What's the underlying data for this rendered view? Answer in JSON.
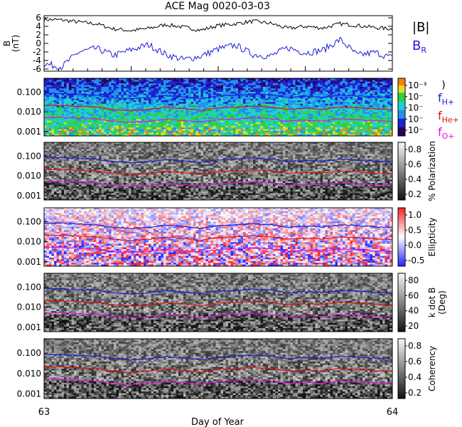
{
  "title": "ACE Mag 0020-03-03",
  "x_axis": {
    "label": "Day of Year",
    "min": 63,
    "max": 64,
    "tick_labels": [
      "63",
      "64"
    ]
  },
  "legend_top": {
    "b_total": "|B|",
    "b_r_main": "B",
    "b_r_sub": "R",
    "b_total_color": "#000000",
    "b_r_color": "#1a1ad8"
  },
  "legend_freq": [
    {
      "main": "f",
      "sub": "H+",
      "color": "#1a1ad8"
    },
    {
      "main": "f",
      "sub": "He+",
      "color": "#e01010"
    },
    {
      "main": "f",
      "sub": "O+",
      "color": "#e010e0"
    }
  ],
  "chart_data": [
    {
      "type": "line",
      "panel": "magnetic-field",
      "ylabel_main": "B",
      "ylabel_sub": "(nT)",
      "ylim": [
        -6.5,
        6.5
      ],
      "y_ticks": [
        6,
        4,
        2,
        0,
        -2,
        -4,
        -6
      ],
      "x": [
        63.0,
        63.05,
        63.1,
        63.15,
        63.2,
        63.25,
        63.3,
        63.35,
        63.4,
        63.45,
        63.5,
        63.55,
        63.6,
        63.65,
        63.7,
        63.75,
        63.8,
        63.85,
        63.9,
        63.95,
        64.0
      ],
      "series": [
        {
          "name": "|B|",
          "color": "#000000",
          "values": [
            5.6,
            5.5,
            5.0,
            4.6,
            3.4,
            3.0,
            3.5,
            4.4,
            3.8,
            3.1,
            4.2,
            4.6,
            5.2,
            4.7,
            3.5,
            4.0,
            3.6,
            4.6,
            4.2,
            3.7,
            3.4
          ]
        },
        {
          "name": "B",
          "color": "#1a1ad8",
          "values": [
            -4.8,
            -5.5,
            -2.0,
            -1.2,
            -2.8,
            -1.5,
            -0.3,
            -2.6,
            -3.8,
            -3.0,
            -1.3,
            -0.4,
            -2.6,
            -3.0,
            -1.0,
            -2.2,
            -1.6,
            0.9,
            -2.8,
            -2.1,
            -3.4
          ]
        }
      ]
    },
    {
      "type": "heatmap",
      "panel": "power-spectrum",
      "ylim": [
        0.0006,
        0.5
      ],
      "y_scale": "log",
      "y_ticks": [
        "0.100",
        "0.010",
        "0.001"
      ],
      "colorbar": {
        "labels": [
          "10⁻³",
          "10⁻",
          "10⁻",
          "10⁻",
          "10⁻"
        ],
        "colormap": "rainbow"
      },
      "label": ")"
    },
    {
      "type": "heatmap",
      "panel": "polarization",
      "ylim": [
        0.0006,
        0.5
      ],
      "y_scale": "log",
      "y_ticks": [
        "0.100",
        "0.010",
        "0.001"
      ],
      "colorbar": {
        "labels": [
          "0.8",
          "0.6",
          "0.4",
          "0.2"
        ],
        "colormap": "gray"
      },
      "label": "% Polarization"
    },
    {
      "type": "heatmap",
      "panel": "ellipticity",
      "ylim": [
        0.0006,
        0.5
      ],
      "y_scale": "log",
      "y_ticks": [
        "0.100",
        "0.010",
        "0.001"
      ],
      "colorbar": {
        "labels": [
          "1.0",
          "0.5",
          "0.0",
          "-0.5"
        ],
        "colormap": "blue-white-red"
      },
      "label": "Ellipticity"
    },
    {
      "type": "heatmap",
      "panel": "wave-normal-angle",
      "ylim": [
        0.0006,
        0.5
      ],
      "y_scale": "log",
      "y_ticks": [
        "0.100",
        "0.010",
        "0.001"
      ],
      "colorbar": {
        "labels": [
          "80",
          "60",
          "40",
          "20"
        ],
        "colormap": "gray"
      },
      "label": "k dot B",
      "label_sub": "(Deg)"
    },
    {
      "type": "heatmap",
      "panel": "coherency",
      "ylim": [
        0.0006,
        0.5
      ],
      "y_scale": "log",
      "y_ticks": [
        "0.100",
        "0.010",
        "0.001"
      ],
      "colorbar": {
        "labels": [
          "0.8",
          "0.6",
          "0.4",
          "0.2"
        ],
        "colormap": "gray"
      },
      "label": "Coherency"
    }
  ],
  "gyrofrequency_lines": {
    "x": [
      63.0,
      63.05,
      63.1,
      63.15,
      63.2,
      63.25,
      63.3,
      63.35,
      63.4,
      63.45,
      63.5,
      63.55,
      63.6,
      63.65,
      63.7,
      63.75,
      63.8,
      63.85,
      63.9,
      63.95,
      64.0
    ],
    "series": [
      {
        "name": "H+",
        "color": "#1a1ad8",
        "values": [
          0.085,
          0.084,
          0.076,
          0.07,
          0.052,
          0.046,
          0.053,
          0.067,
          0.058,
          0.047,
          0.064,
          0.07,
          0.079,
          0.072,
          0.053,
          0.061,
          0.055,
          0.07,
          0.064,
          0.056,
          0.052
        ]
      },
      {
        "name": "He+",
        "color": "#e01010",
        "values": [
          0.021,
          0.021,
          0.019,
          0.0175,
          0.013,
          0.0115,
          0.0133,
          0.0168,
          0.0145,
          0.0118,
          0.016,
          0.0175,
          0.0198,
          0.018,
          0.0133,
          0.0153,
          0.0138,
          0.0175,
          0.016,
          0.014,
          0.013
        ]
      },
      {
        "name": "O+",
        "color": "#e010e0",
        "values": [
          0.0053,
          0.0052,
          0.0048,
          0.0044,
          0.0033,
          0.0029,
          0.0033,
          0.0042,
          0.0036,
          0.003,
          0.004,
          0.0044,
          0.005,
          0.0045,
          0.0033,
          0.0038,
          0.0034,
          0.0044,
          0.004,
          0.0035,
          0.0033
        ]
      }
    ]
  }
}
